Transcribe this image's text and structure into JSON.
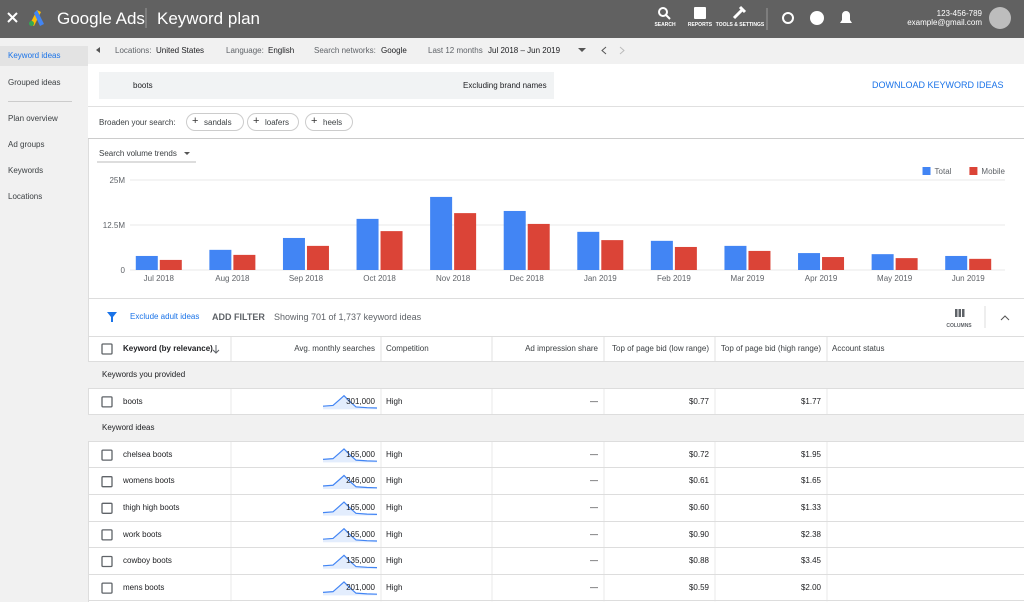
{
  "topbar": {
    "product": "Google Ads",
    "page": "Keyword plan",
    "tools": [
      "SEARCH",
      "REPORTS",
      "TOOLS & SETTINGS"
    ],
    "account_id": "123-456-789",
    "email": "example@gmail.com"
  },
  "sidebar": {
    "items": [
      "Keyword ideas",
      "Grouped ideas",
      "Plan overview",
      "Ad groups",
      "Keywords",
      "Locations"
    ]
  },
  "filters": {
    "location_label": "Locations:",
    "location": "United States",
    "language_label": "Language:",
    "language": "English",
    "network_label": "Search networks:",
    "network": "Google",
    "period_label": "Last 12 months",
    "period": "Jul 2018 – Jun 2019"
  },
  "search": {
    "query": "boots",
    "exclude": "Excluding brand names",
    "download": "DOWNLOAD KEYWORD IDEAS"
  },
  "broaden": {
    "label": "Broaden your search:",
    "chips": [
      "sandals",
      "loafers",
      "heels"
    ]
  },
  "chart_data": {
    "type": "bar",
    "title": "Search volume trends",
    "categories": [
      "Jul 2018",
      "Aug 2018",
      "Sep 2018",
      "Oct 2018",
      "Nov 2018",
      "Dec 2018",
      "Jan 2019",
      "Feb 2019",
      "Mar 2019",
      "Apr 2019",
      "May 2019",
      "Jun 2019"
    ],
    "series": [
      {
        "name": "Total",
        "color": "#4285f4",
        "values": [
          3.9,
          5.6,
          8.9,
          14.2,
          20.3,
          16.4,
          10.6,
          8.1,
          6.7,
          4.7,
          4.4,
          3.9
        ]
      },
      {
        "name": "Mobile",
        "color": "#db4437",
        "values": [
          2.8,
          4.2,
          6.7,
          10.8,
          15.8,
          12.8,
          8.3,
          6.4,
          5.3,
          3.6,
          3.3,
          3.1
        ]
      }
    ],
    "ylim": [
      0,
      25
    ],
    "yticks": [
      0,
      {
        "value": 12.5,
        "label": "12.5M"
      },
      {
        "value": 25,
        "label": "25M"
      }
    ],
    "grid": true,
    "legend": "top-right"
  },
  "toolbar": {
    "exclude": "Exclude adult ideas",
    "add_filter": "ADD FILTER",
    "showing": "Showing 701 of 1,737 keyword ideas",
    "columns": "COLUMNS"
  },
  "table": {
    "columns": [
      "Keyword (by relevance)",
      "Avg. monthly searches",
      "Competition",
      "Ad impression share",
      "Top of page bid (low range)",
      "Top of page bid (high range)",
      "Account status"
    ],
    "groups": [
      {
        "title": "Keywords you provided",
        "rows": [
          [
            "boots",
            "301,000",
            "High",
            "—",
            "$0.77",
            "$1.77"
          ]
        ]
      },
      {
        "title": "Keyword ideas",
        "rows": [
          [
            "chelsea boots",
            "165,000",
            "High",
            "—",
            "$0.72",
            "$1.95"
          ],
          [
            "womens boots",
            "246,000",
            "High",
            "—",
            "$0.61",
            "$1.65"
          ],
          [
            "thigh high boots",
            "165,000",
            "High",
            "—",
            "$0.60",
            "$1.33"
          ],
          [
            "work boots",
            "165,000",
            "High",
            "—",
            "$0.90",
            "$2.38"
          ],
          [
            "cowboy boots",
            "135,000",
            "High",
            "—",
            "$0.88",
            "$3.45"
          ],
          [
            "mens boots",
            "201,000",
            "High",
            "—",
            "$0.59",
            "$2.00"
          ]
        ]
      }
    ]
  }
}
